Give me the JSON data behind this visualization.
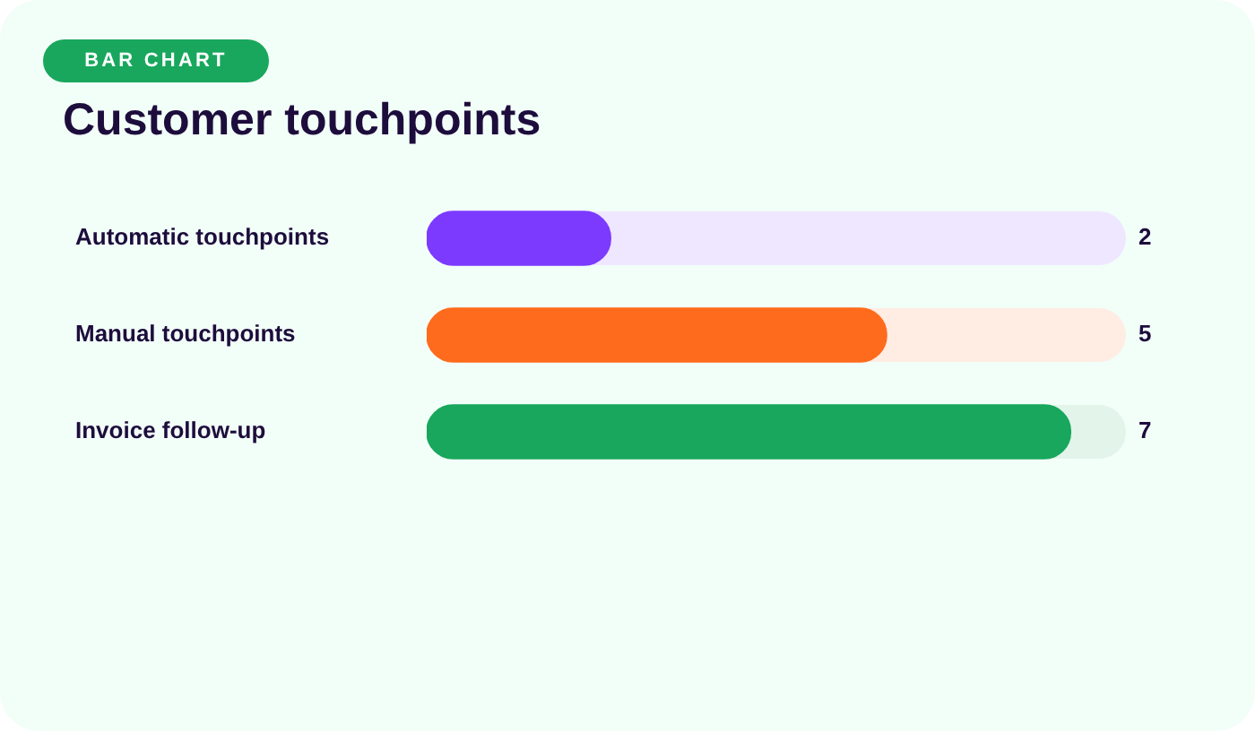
{
  "chart_data": {
    "type": "bar",
    "title": "Customer touchpoints",
    "annotations": [
      "BAR CHART"
    ],
    "orientation": "horizontal",
    "categories": [
      "Automatic touchpoints",
      "Manual touchpoints",
      "Invoice follow-up"
    ],
    "values": [
      2,
      5,
      7
    ],
    "colors": [
      "#7c3aff",
      "#ff6b1c",
      "#18a75c"
    ],
    "xlim": [
      0,
      7.6
    ],
    "data_labels": true,
    "grid": false,
    "legend": false
  }
}
